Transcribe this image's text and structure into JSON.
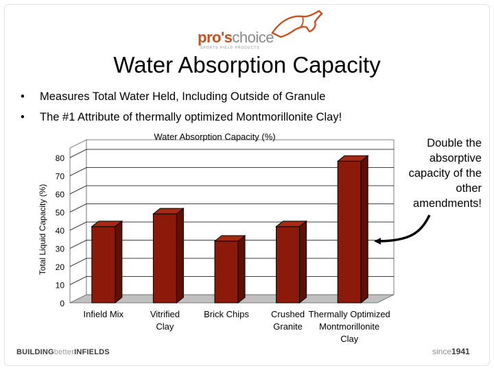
{
  "logo": {
    "brand_main": "pro's",
    "brand_rest": "choice",
    "tagline": "SPORTS FIELD PRODUCTS"
  },
  "slide": {
    "title": "Water Absorption Capacity",
    "bullets": [
      "Measures Total Water Held, Including Outside of Granule",
      "The #1 Attribute of thermally optimized Montmorillonite Clay!"
    ],
    "bullet_symbol": "•",
    "annotation": "Double the absorptive capacity of the other amendments!"
  },
  "footer": {
    "left_a": "BUILDING",
    "left_b": "better",
    "left_c": "INFIELDS",
    "right_a": "since",
    "right_b": "1941"
  },
  "colors": {
    "bar_fill": "#8b1a0a",
    "bar_side": "#5e1005",
    "bar_top": "#a52a15",
    "accent": "#c8501e"
  },
  "chart_data": {
    "type": "bar",
    "title": "Water Absorption Capacity (%)",
    "xlabel": "",
    "ylabel": "Total Liquid Capacity (%)",
    "ylim": [
      0,
      80
    ],
    "yticks": [
      0,
      10,
      20,
      30,
      40,
      50,
      60,
      70,
      80
    ],
    "categories": [
      [
        "Infield Mix"
      ],
      [
        "Vitrified",
        "Clay"
      ],
      [
        "Brick Chips"
      ],
      [
        "Crushed",
        "Granite"
      ],
      [
        "Thermally Optimized",
        "Montmorillonite",
        "Clay"
      ]
    ],
    "values": [
      42,
      49,
      34,
      42,
      78
    ],
    "grid": true,
    "three_d": true
  }
}
